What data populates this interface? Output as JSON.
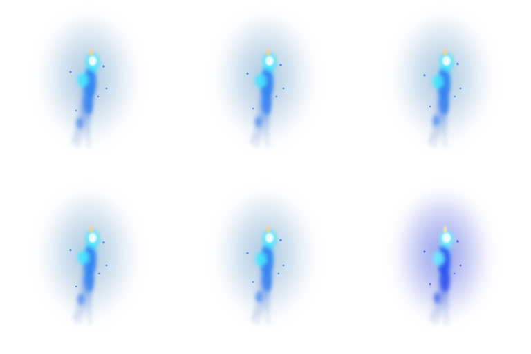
{
  "sprite_sheet": {
    "kind": "blue spirit flame animation frames",
    "columns": 3,
    "rows": 2,
    "frames": [
      {
        "index": 1,
        "aura_color": "#8fb6d8",
        "flame_color": "#2f7cf0",
        "core_color": "#49e7ff",
        "spark_color": "#ffd27a",
        "lean": -6,
        "flicker": 0.0
      },
      {
        "index": 2,
        "aura_color": "#8fb6d8",
        "flame_color": "#2f7cf0",
        "core_color": "#49e7ff",
        "spark_color": "#ffd27a",
        "lean": -3,
        "flicker": 0.3
      },
      {
        "index": 3,
        "aura_color": "#8fb6d8",
        "flame_color": "#2f7cf0",
        "core_color": "#49e7ff",
        "spark_color": "#ffd27a",
        "lean": -2,
        "flicker": 0.6
      },
      {
        "index": 4,
        "aura_color": "#8fb6d8",
        "flame_color": "#2f7cf0",
        "core_color": "#49e7ff",
        "spark_color": "#ffd27a",
        "lean": -4,
        "flicker": 0.2
      },
      {
        "index": 5,
        "aura_color": "#8fb6d8",
        "flame_color": "#2f7cf0",
        "core_color": "#49e7ff",
        "spark_color": "#ffd27a",
        "lean": -2,
        "flicker": 0.8
      },
      {
        "index": 6,
        "aura_color": "#6f7fe6",
        "flame_color": "#2a4df0",
        "core_color": "#6ff0ff",
        "spark_color": "#ffe7a8",
        "lean": 0,
        "flicker": 0.5
      }
    ]
  }
}
